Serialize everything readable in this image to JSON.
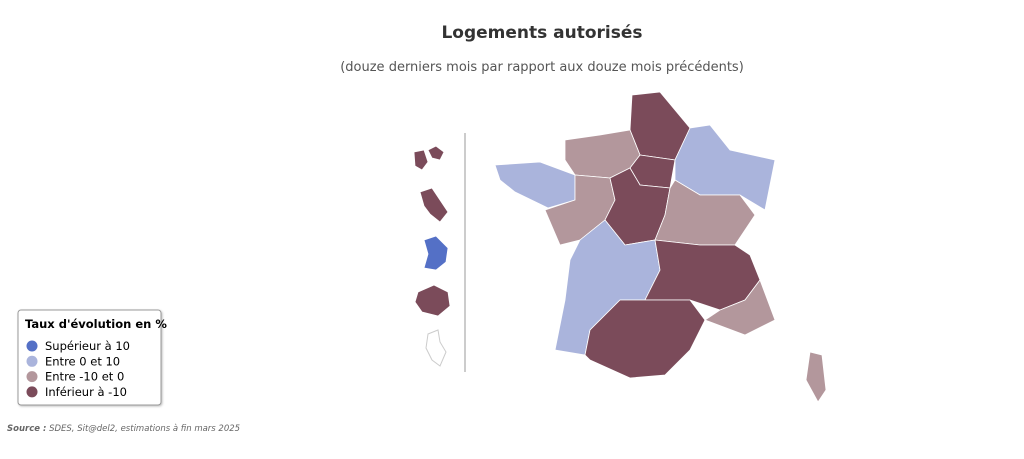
{
  "title": "Logements autorisés",
  "subtitle": "(douze derniers mois par rapport aux douze mois précédents)",
  "legend": {
    "title": "Taux d'évolution en %",
    "items": [
      {
        "name": "Supérieur à 10",
        "color": "#5470c6"
      },
      {
        "name": "Entre 0 et 10",
        "color": "#aab4dc"
      },
      {
        "name": "Entre -10 et 0",
        "color": "#b3979c"
      },
      {
        "name": "Inférieur à -10",
        "color": "#7b4b5a"
      }
    ]
  },
  "source": {
    "label": "Source :",
    "text": "SDES, Sit@del2, estimations à fin mars 2025"
  }
}
